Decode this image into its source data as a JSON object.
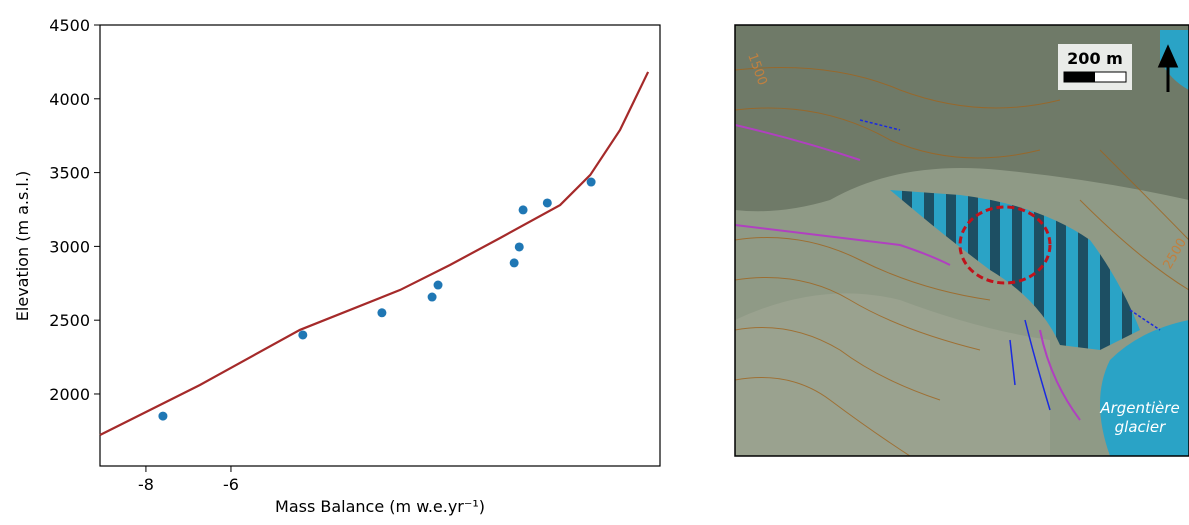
{
  "chart_data": {
    "type": "scatter",
    "x_label": "Mass Balance (m w.e.yr⁻¹)",
    "y_label": "Elevation (m a.s.l.)",
    "xlim": [
      -9.08,
      4.09
    ],
    "ylim": [
      1512,
      4500
    ],
    "xticks": [
      -8,
      -6
    ],
    "yticks": [
      2000,
      2500,
      3000,
      3500,
      4000,
      4500
    ],
    "points": {
      "color": "#1f77b4",
      "x": [
        -7.6,
        -4.31,
        -2.45,
        -1.27,
        -1.13,
        0.66,
        0.78,
        0.87,
        1.44,
        2.47
      ],
      "values": [
        1850,
        2400,
        2550,
        2657,
        2738,
        2888,
        2996,
        3247,
        3294,
        3436
      ]
    },
    "fit": {
      "color": "#a52a2a",
      "x": [
        -9.08,
        -6.73,
        -4.38,
        -2.02,
        -0.85,
        0.33,
        1.74,
        2.45,
        3.15,
        3.81
      ],
      "values": [
        1722,
        2061,
        2434,
        2705,
        2874,
        3057,
        3280,
        3484,
        3789,
        4182
      ]
    }
  },
  "map": {
    "scale_label": "200 m",
    "glacier_label": [
      "Argentière",
      "glacier"
    ],
    "contour_labels": [
      "1500",
      "2500"
    ]
  }
}
